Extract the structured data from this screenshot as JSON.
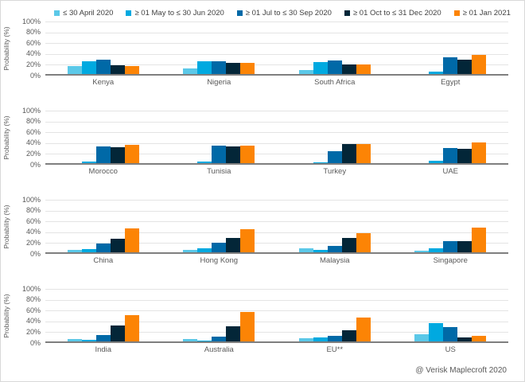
{
  "ylabel": "Probability (%)",
  "footer": "@ Verisk Maplecroft 2020",
  "chart_data": {
    "type": "bar",
    "title": "",
    "xlabel": "",
    "ylabel": "Probability (%)",
    "ylim": [
      0,
      100
    ],
    "yticks_pct": [
      0,
      20,
      40,
      60,
      80,
      100
    ],
    "grid": "horizontal",
    "legend_position": "top",
    "series_names": [
      "≤ 30 April 2020",
      "≥ 01 May to ≤ 30 Jun 2020",
      "≥ 01 Jul to ≤ 30 Sep 2020",
      "≥ 01 Oct to ≤ 31 Dec 2020",
      "≥ 01 Jan 2021"
    ],
    "series_colors": [
      "#5BC8E8",
      "#00A9E0",
      "#0069A7",
      "#032638",
      "#FC8405"
    ],
    "panels": [
      {
        "categories": [
          "Kenya",
          "Nigeria",
          "South Africa",
          "Egypt"
        ],
        "series": [
          {
            "name": "≤ 30 April 2020",
            "values": [
              15,
              10,
              8,
              0
            ]
          },
          {
            "name": "≥ 01 May to ≤ 30 Jun 2020",
            "values": [
              24,
              23,
              22,
              4
            ]
          },
          {
            "name": "≥ 01 Jul to ≤ 30 Sep 2020",
            "values": [
              26,
              24,
              25,
              31
            ]
          },
          {
            "name": "≥ 01 Oct to ≤ 31 Dec 2020",
            "values": [
              16,
              20,
              18,
              27
            ]
          },
          {
            "name": "≥ 01 Jan 2021",
            "values": [
              15,
              20,
              17,
              35
            ]
          }
        ]
      },
      {
        "categories": [
          "Morocco",
          "Tunisia",
          "Turkey",
          "UAE"
        ],
        "series": [
          {
            "name": "≤ 30 April 2020",
            "values": [
              0,
              0,
              0,
              0
            ]
          },
          {
            "name": "≥ 01 May to ≤ 30 Jun 2020",
            "values": [
              3,
              3,
              2,
              4
            ]
          },
          {
            "name": "≥ 01 Jul to ≤ 30 Sep 2020",
            "values": [
              31,
              32,
              22,
              28
            ]
          },
          {
            "name": "≥ 01 Oct to ≤ 31 Dec 2020",
            "values": [
              30,
              31,
              35,
              26
            ]
          },
          {
            "name": "≥ 01 Jan 2021",
            "values": [
              34,
              33,
              36,
              38
            ]
          }
        ]
      },
      {
        "categories": [
          "China",
          "Hong Kong",
          "Malaysia",
          "Singapore"
        ],
        "series": [
          {
            "name": "≤ 30 April 2020",
            "values": [
              5,
              5,
              8,
              3
            ]
          },
          {
            "name": "≥ 01 May to ≤ 30 Jun 2020",
            "values": [
              6,
              7,
              5,
              7
            ]
          },
          {
            "name": "≥ 01 Jul to ≤ 30 Sep 2020",
            "values": [
              16,
              18,
              12,
              20
            ]
          },
          {
            "name": "≥ 01 Oct to ≤ 31 Dec 2020",
            "values": [
              25,
              27,
              27,
              21
            ]
          },
          {
            "name": "≥ 01 Jan 2021",
            "values": [
              44,
              42,
              36,
              45
            ]
          }
        ]
      },
      {
        "categories": [
          "India",
          "Australia",
          "EU**",
          "US"
        ],
        "series": [
          {
            "name": "≤ 30 April 2020",
            "values": [
              5,
              4,
              6,
              13
            ]
          },
          {
            "name": "≥ 01 May to ≤ 30 Jun 2020",
            "values": [
              3,
              2,
              8,
              34
            ]
          },
          {
            "name": "≥ 01 Jul to ≤ 30 Sep 2020",
            "values": [
              12,
              9,
              11,
              26
            ]
          },
          {
            "name": "≥ 01 Oct to ≤ 31 Dec 2020",
            "values": [
              29,
              28,
              21,
              7
            ]
          },
          {
            "name": "≥ 01 Jan 2021",
            "values": [
              48,
              55,
              44,
              10
            ]
          }
        ]
      }
    ]
  }
}
